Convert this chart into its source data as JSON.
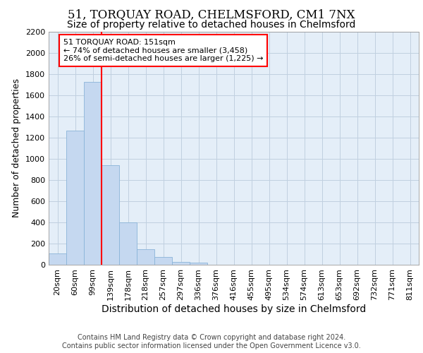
{
  "title1": "51, TORQUAY ROAD, CHELMSFORD, CM1 7NX",
  "title2": "Size of property relative to detached houses in Chelmsford",
  "xlabel": "Distribution of detached houses by size in Chelmsford",
  "ylabel": "Number of detached properties",
  "footer1": "Contains HM Land Registry data © Crown copyright and database right 2024.",
  "footer2": "Contains public sector information licensed under the Open Government Licence v3.0.",
  "bar_labels": [
    "20sqm",
    "60sqm",
    "99sqm",
    "139sqm",
    "178sqm",
    "218sqm",
    "257sqm",
    "297sqm",
    "336sqm",
    "376sqm",
    "416sqm",
    "455sqm",
    "495sqm",
    "534sqm",
    "574sqm",
    "613sqm",
    "653sqm",
    "692sqm",
    "732sqm",
    "771sqm",
    "811sqm"
  ],
  "bar_values": [
    110,
    1270,
    1730,
    940,
    400,
    150,
    75,
    30,
    20,
    0,
    0,
    0,
    0,
    0,
    0,
    0,
    0,
    0,
    0,
    0,
    0
  ],
  "bar_color": "#c5d8f0",
  "bar_edge_color": "#8ab4d8",
  "property_line_x": 2.5,
  "property_line_color": "red",
  "annotation_text": "51 TORQUAY ROAD: 151sqm\n← 74% of detached houses are smaller (3,458)\n26% of semi-detached houses are larger (1,225) →",
  "ylim": [
    0,
    2200
  ],
  "yticks": [
    0,
    200,
    400,
    600,
    800,
    1000,
    1200,
    1400,
    1600,
    1800,
    2000,
    2200
  ],
  "grid_color": "#c0d0e0",
  "bg_color": "#e4eef8",
  "title1_fontsize": 12,
  "title2_fontsize": 10,
  "annotation_fontsize": 8,
  "ylabel_fontsize": 9,
  "xlabel_fontsize": 10,
  "tick_fontsize": 8,
  "footer_fontsize": 7
}
